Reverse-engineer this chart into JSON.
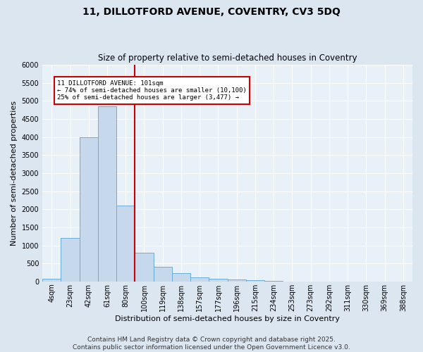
{
  "title_line1": "11, DILLOTFORD AVENUE, COVENTRY, CV3 5DQ",
  "title_line2": "Size of property relative to semi-detached houses in Coventry",
  "xlabel": "Distribution of semi-detached houses by size in Coventry",
  "ylabel": "Number of semi-detached properties",
  "categories": [
    "4sqm",
    "23sqm",
    "42sqm",
    "61sqm",
    "80sqm",
    "100sqm",
    "119sqm",
    "138sqm",
    "157sqm",
    "177sqm",
    "196sqm",
    "215sqm",
    "234sqm",
    "253sqm",
    "273sqm",
    "292sqm",
    "311sqm",
    "330sqm",
    "369sqm",
    "388sqm"
  ],
  "bar_values": [
    70,
    1200,
    4000,
    4850,
    2100,
    800,
    400,
    230,
    120,
    80,
    50,
    35,
    10,
    5,
    2,
    0,
    0,
    0,
    0,
    0
  ],
  "bar_color": "#c5d8ec",
  "bar_edge_color": "#6aaed6",
  "vline_color": "#cc0000",
  "annotation_title": "11 DILLOTFORD AVENUE: 101sqm",
  "annotation_line1": "← 74% of semi-detached houses are smaller (10,100)",
  "annotation_line2": "25% of semi-detached houses are larger (3,477) →",
  "annotation_box_color": "#cc0000",
  "ylim": [
    0,
    6000
  ],
  "yticks": [
    0,
    500,
    1000,
    1500,
    2000,
    2500,
    3000,
    3500,
    4000,
    4500,
    5000,
    5500,
    6000
  ],
  "footer_line1": "Contains HM Land Registry data © Crown copyright and database right 2025.",
  "footer_line2": "Contains public sector information licensed under the Open Government Licence v3.0.",
  "bg_color": "#dce6f0",
  "plot_bg_color": "#e8f0f8",
  "grid_color": "#ffffff",
  "title_fontsize": 10,
  "subtitle_fontsize": 8.5,
  "xlabel_fontsize": 8,
  "ylabel_fontsize": 8,
  "tick_fontsize": 7,
  "ytick_fontsize": 7,
  "footer_fontsize": 6.5
}
